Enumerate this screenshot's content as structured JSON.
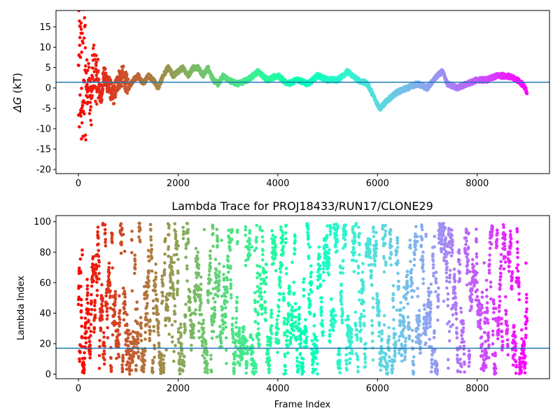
{
  "chart_data": [
    {
      "type": "scatter",
      "title": "",
      "xlabel": "",
      "ylabel": "ΔG (kT)",
      "ylabel_symbol": "ΔG",
      "ylabel_unit": "(kT)",
      "xlim": [
        -450,
        9450
      ],
      "ylim": [
        -21,
        19
      ],
      "x_ticks": [
        0,
        2000,
        4000,
        6000,
        8000
      ],
      "y_ticks": [
        -20,
        -15,
        -10,
        -5,
        0,
        5,
        10,
        15
      ],
      "colormap": "rainbow",
      "hline": 1.4,
      "hline_color": "#1f77b4",
      "grid": false,
      "legend": "none",
      "n_points": 9000,
      "series": [
        {
          "x": [
            0,
            40,
            80,
            120,
            160,
            200,
            250,
            300,
            350,
            400,
            450,
            500,
            600,
            700,
            800,
            900,
            1000,
            1100,
            1200,
            1300,
            1400,
            1500,
            1600,
            1700,
            1800,
            1900,
            2000,
            2100,
            2200,
            2300,
            2400,
            2500,
            2600,
            2700,
            2800,
            2900,
            3000,
            3200,
            3400,
            3500,
            3600,
            3800,
            4000,
            4200,
            4400,
            4600,
            4800,
            5000,
            5200,
            5400,
            5600,
            5800,
            6000,
            6050,
            6200,
            6400,
            6600,
            6800,
            7000,
            7200,
            7300,
            7400,
            7600,
            7800,
            8000,
            8200,
            8400,
            8600,
            8800,
            8900,
            9000
          ],
          "y": [
            0,
            5,
            -2,
            4,
            1,
            3,
            -5,
            6,
            2,
            2,
            -3,
            3,
            1,
            -2,
            2,
            3,
            0,
            2,
            3,
            1,
            3,
            2,
            0,
            3,
            5,
            3,
            4,
            5,
            3,
            5,
            5,
            3,
            5,
            2,
            1,
            3,
            2,
            1,
            2,
            3,
            4,
            2,
            3,
            1,
            2,
            1,
            3,
            2,
            2,
            4,
            2,
            1,
            -4,
            -5,
            -3,
            -1,
            0,
            1,
            0,
            3,
            4,
            1,
            0,
            1,
            2,
            2,
            3,
            3,
            2,
            1,
            -1
          ]
        }
      ]
    },
    {
      "type": "scatter",
      "title": "Lambda Trace for PROJ18433/RUN17/CLONE29",
      "xlabel": "Frame Index",
      "ylabel": "Lambda Index",
      "xlim": [
        -450,
        9450
      ],
      "ylim": [
        -3,
        104
      ],
      "x_ticks": [
        0,
        2000,
        4000,
        6000,
        8000
      ],
      "y_ticks": [
        0,
        20,
        40,
        60,
        80,
        100
      ],
      "colormap": "rainbow",
      "hline": 17,
      "hline_color": "#1f77b4",
      "grid": false,
      "legend": "none",
      "n_points": 9000,
      "series": [
        {
          "x_range": [
            0,
            9000
          ],
          "y_range": [
            0,
            99
          ]
        }
      ]
    }
  ]
}
